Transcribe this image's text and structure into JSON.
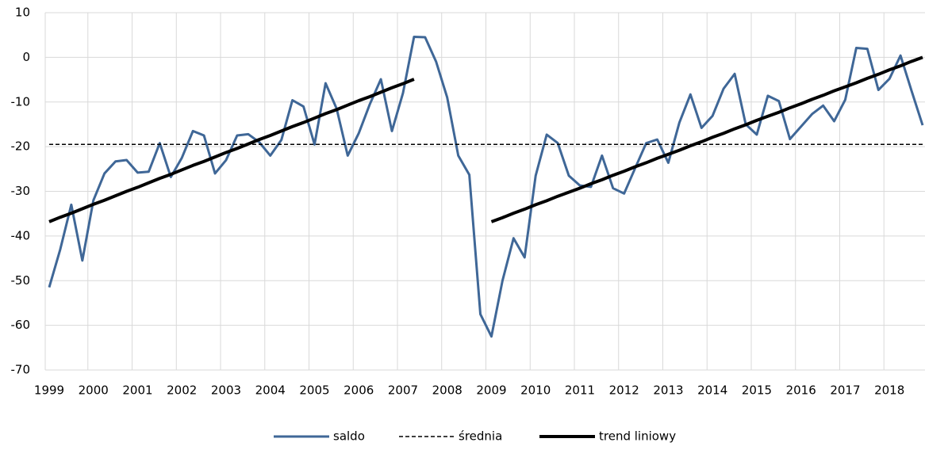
{
  "chart_data": {
    "type": "line",
    "categories": [
      "1999",
      null,
      null,
      null,
      "2000",
      null,
      null,
      null,
      "2001",
      null,
      null,
      null,
      "2002",
      null,
      null,
      null,
      "2003",
      null,
      null,
      null,
      "2004",
      null,
      null,
      null,
      "2005",
      null,
      null,
      null,
      "2006",
      null,
      null,
      null,
      "2007",
      null,
      null,
      null,
      "2008",
      null,
      null,
      null,
      "2009",
      null,
      null,
      null,
      "2010",
      null,
      null,
      null,
      "2011",
      null,
      null,
      null,
      "2012",
      null,
      null,
      null,
      "2013",
      null,
      null,
      null,
      "2014",
      null,
      null,
      null,
      "2015",
      null,
      null,
      null,
      "2016",
      null,
      null,
      null,
      "2017",
      null,
      null,
      null,
      "2018",
      null,
      null,
      null
    ],
    "series": [
      {
        "name": "saldo",
        "color": "#3f6797",
        "style": "solid",
        "width": 3,
        "values": [
          -51.5,
          -43,
          -33,
          -45.5,
          -32,
          -26,
          -23.3,
          -23,
          -25.8,
          -25.6,
          -19.2,
          -26.8,
          -22.5,
          -16.5,
          -17.5,
          -26,
          -23,
          -17.5,
          -17.2,
          -19,
          -22,
          -18.5,
          -9.6,
          -11,
          -19.5,
          -5.8,
          -11.5,
          -22,
          -17,
          -10.5,
          -4.9,
          -16.5,
          -8,
          4.6,
          4.5,
          -1,
          -9,
          -22,
          -26.3,
          -57.5,
          -62.5,
          -50,
          -40.5,
          -44.8,
          -26.5,
          -17.3,
          -19.2,
          -26.5,
          -28.7,
          -29,
          -22,
          -29.3,
          -30.5,
          -24.8,
          -19.2,
          -18.4,
          -23.6,
          -14.6,
          -8.3,
          -15.8,
          -13.1,
          -7,
          -3.7,
          -15,
          -17.3,
          -8.6,
          -9.8,
          -18.3,
          -15.5,
          -12.7,
          -10.8,
          -14.3,
          -9.5,
          2.1,
          1.9,
          -7.3,
          -4.8,
          0.4,
          -7.5,
          -15.2
        ]
      },
      {
        "name": "średnia",
        "color": "#000000",
        "style": "dashed",
        "width": 1.5,
        "values": [
          -19.5,
          -19.5,
          -19.5,
          -19.5,
          -19.5,
          -19.5,
          -19.5,
          -19.5,
          -19.5,
          -19.5,
          -19.5,
          -19.5,
          -19.5,
          -19.5,
          -19.5,
          -19.5,
          -19.5,
          -19.5,
          -19.5,
          -19.5,
          -19.5,
          -19.5,
          -19.5,
          -19.5,
          -19.5,
          -19.5,
          -19.5,
          -19.5,
          -19.5,
          -19.5,
          -19.5,
          -19.5,
          -19.5,
          -19.5,
          -19.5,
          -19.5,
          -19.5,
          -19.5,
          -19.5,
          -19.5,
          -19.5,
          -19.5,
          -19.5,
          -19.5,
          -19.5,
          -19.5,
          -19.5,
          -19.5,
          -19.5,
          -19.5,
          -19.5,
          -19.5,
          -19.5,
          -19.5,
          -19.5,
          -19.5,
          -19.5,
          -19.5,
          -19.5,
          -19.5,
          -19.5,
          -19.5,
          -19.5,
          -19.5,
          -19.5,
          -19.5,
          -19.5,
          -19.5,
          -19.5,
          -19.5,
          -19.5,
          -19.5,
          -19.5,
          -19.5,
          -19.5,
          -19.5,
          -19.5,
          -19.5,
          -19.5,
          -19.5
        ]
      },
      {
        "name": "trend liniowy",
        "color": "#000000",
        "style": "solid",
        "width": 4,
        "values": [
          -36.8,
          -35.8,
          -34.9,
          -33.9,
          -32.9,
          -32.0,
          -31.0,
          -30.0,
          -29.1,
          -28.1,
          -27.1,
          -26.2,
          -25.2,
          -24.2,
          -23.3,
          -22.3,
          -21.3,
          -20.4,
          -19.4,
          -18.4,
          -17.5,
          -16.5,
          -15.5,
          -14.6,
          -13.6,
          -12.6,
          -11.7,
          -10.7,
          -9.7,
          -8.8,
          -7.8,
          -6.8,
          -5.9,
          -4.9,
          null,
          null,
          null,
          null,
          null,
          null,
          -36.8,
          -35.9,
          -34.9,
          -34.0,
          -33.0,
          -32.1,
          -31.1,
          -30.2,
          -29.3,
          -28.3,
          -27.4,
          -26.4,
          -25.5,
          -24.5,
          -23.6,
          -22.6,
          -21.7,
          -20.8,
          -19.8,
          -18.9,
          -17.9,
          -17.0,
          -16.0,
          -15.1,
          -14.1,
          -13.2,
          -12.3,
          -11.3,
          -10.4,
          -9.4,
          -8.5,
          -7.5,
          -6.6,
          -5.7,
          -4.7,
          -3.8,
          -2.8,
          -1.9,
          -0.9,
          0
        ]
      }
    ],
    "ylim": [
      -70,
      10
    ],
    "yticks": [
      -70,
      -60,
      -50,
      -40,
      -30,
      -20,
      -10,
      0,
      10
    ],
    "grid": true,
    "legend": "bottom"
  }
}
